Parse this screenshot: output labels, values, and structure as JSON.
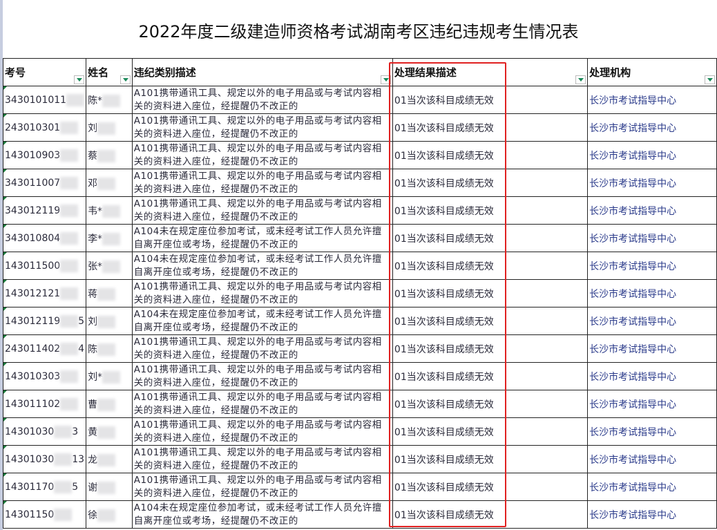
{
  "title": "2022年度二级建造师资格考试湖南考区违纪违规考生情况表",
  "headers": [
    "考号",
    "姓名",
    "违纪类别描述",
    "处理结果描述",
    "处理机构"
  ],
  "rows": [
    {
      "id": "3430101011",
      "id_end": "",
      "name": "陈*",
      "desc": "A101携带通讯工具、规定以外的电子用品或与考试内容相关的资料进入座位，经提醒仍不改正的",
      "result": "01当次该科目成绩无效",
      "org": "长沙市考试指导中心"
    },
    {
      "id": "243010301",
      "id_end": "",
      "name": "刘",
      "desc": "A101携带通讯工具、规定以外的电子用品或与考试内容相关的资料进入座位，经提醒仍不改正的",
      "result": "01当次该科目成绩无效",
      "org": "长沙市考试指导中心"
    },
    {
      "id": "143010903",
      "id_end": "",
      "name": "蔡",
      "desc": "A101携带通讯工具、规定以外的电子用品或与考试内容相关的资料进入座位，经提醒仍不改正的",
      "result": "01当次该科目成绩无效",
      "org": "长沙市考试指导中心"
    },
    {
      "id": "343011007",
      "id_end": "",
      "name": "邓",
      "desc": "A101携带通讯工具、规定以外的电子用品或与考试内容相关的资料进入座位，经提醒仍不改正的",
      "result": "01当次该科目成绩无效",
      "org": "长沙市考试指导中心"
    },
    {
      "id": "343012119",
      "id_end": "",
      "name": "韦*",
      "desc": "A101携带通讯工具、规定以外的电子用品或与考试内容相关的资料进入座位，经提醒仍不改正的",
      "result": "01当次该科目成绩无效",
      "org": "长沙市考试指导中心"
    },
    {
      "id": "343010804",
      "id_end": "",
      "name": "李*",
      "desc": "A104未在规定座位参加考试，或未经考试工作人员允许擅自离开座位或考场，经提醒仍不改正的",
      "result": "01当次该科目成绩无效",
      "org": "长沙市考试指导中心"
    },
    {
      "id": "143011500",
      "id_end": "",
      "name": "张*",
      "desc": "A104未在规定座位参加考试，或未经考试工作人员允许擅自离开座位或考场，经提醒仍不改正的",
      "result": "01当次该科目成绩无效",
      "org": "长沙市考试指导中心"
    },
    {
      "id": "143012121",
      "id_end": "",
      "name": "蒋",
      "desc": "A101携带通讯工具、规定以外的电子用品或与考试内容相关的资料进入座位，经提醒仍不改正的",
      "result": "01当次该科目成绩无效",
      "org": "长沙市考试指导中心"
    },
    {
      "id": "143012119",
      "id_end": "5",
      "name": "刘",
      "desc": "A104未在规定座位参加考试，或未经考试工作人员允许擅自离开座位或考场，经提醒仍不改正的",
      "result": "01当次该科目成绩无效",
      "org": "长沙市考试指导中心"
    },
    {
      "id": "243011402",
      "id_end": "4",
      "name": "陈",
      "desc": "A101携带通讯工具、规定以外的电子用品或与考试内容相关的资料进入座位，经提醒仍不改正的",
      "result": "01当次该科目成绩无效",
      "org": "长沙市考试指导中心"
    },
    {
      "id": "143010303",
      "id_end": "",
      "name": "刘*",
      "desc": "A101携带通讯工具、规定以外的电子用品或与考试内容相关的资料进入座位，经提醒仍不改正的",
      "result": "01当次该科目成绩无效",
      "org": "长沙市考试指导中心"
    },
    {
      "id": "143011102",
      "id_end": "",
      "name": "曹",
      "desc": "A101携带通讯工具、规定以外的电子用品或与考试内容相关的资料进入座位，经提醒仍不改正的",
      "result": "01当次该科目成绩无效",
      "org": "长沙市考试指导中心"
    },
    {
      "id": "14301030",
      "id_end": "3",
      "name": "黄",
      "desc": "A101携带通讯工具、规定以外的电子用品或与考试内容相关的资料进入座位，经提醒仍不改正的",
      "result": "01当次该科目成绩无效",
      "org": "长沙市考试指导中心"
    },
    {
      "id": "14301030",
      "id_end": "13",
      "name": "龙",
      "desc": "A101携带通讯工具、规定以外的电子用品或与考试内容相关的资料进入座位，经提醒仍不改正的",
      "result": "01当次该科目成绩无效",
      "org": "长沙市考试指导中心"
    },
    {
      "id": "14301170",
      "id_end": "5",
      "name": "谢",
      "desc": "A101携带通讯工具、规定以外的电子用品或与考试内容相关的资料进入座位，经提醒仍不改正的",
      "result": "01当次该科目成绩无效",
      "org": "长沙市考试指导中心"
    },
    {
      "id": "14301150",
      "id_end": "",
      "name": "徐",
      "desc": "A104未在规定座位参加考试，或未经考试工作人员允许擅自离开座位或考场，经提醒仍不改正的",
      "result": "01当次该科目成绩无效",
      "org": "长沙市考试指导中心"
    }
  ],
  "highlight_color": "#e02020"
}
